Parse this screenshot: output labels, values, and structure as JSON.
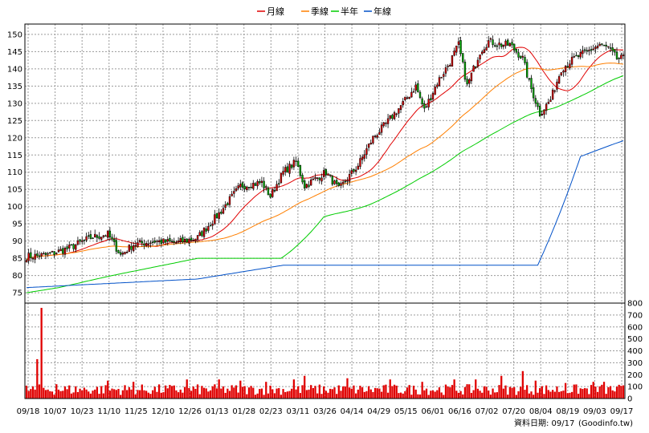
{
  "legend": [
    {
      "label": "月線",
      "color": "#e00000"
    },
    {
      "label": "季線",
      "color": "#ff7f00"
    },
    {
      "label": "半年",
      "color": "#00cc00"
    },
    {
      "label": "年線",
      "color": "#0050c8"
    }
  ],
  "footer": {
    "date_label": "資料日期: 09/17",
    "source": "(Goodinfo.tw)"
  },
  "chart_data": [
    {
      "type": "candlestick",
      "title": "",
      "xlabel": "",
      "ylabel": "",
      "ylim": [
        72,
        153
      ],
      "ytick_step": 5,
      "grid": true,
      "legend_position": "top-center",
      "up_color": "#e00000",
      "down_color": "#00b000",
      "x_ticks": [
        "09/18",
        "10/07",
        "10/23",
        "11/10",
        "11/25",
        "12/10",
        "12/26",
        "01/13",
        "01/28",
        "02/23",
        "03/11",
        "03/26",
        "04/14",
        "04/29",
        "05/15",
        "06/01",
        "06/16",
        "07/02",
        "07/20",
        "08/04",
        "08/19",
        "09/03",
        "09/17"
      ],
      "close_anchors": [
        [
          0,
          85.5
        ],
        [
          10,
          86
        ],
        [
          20,
          88
        ],
        [
          30,
          91
        ],
        [
          38,
          92
        ],
        [
          44,
          86
        ],
        [
          50,
          89
        ],
        [
          60,
          90
        ],
        [
          70,
          89.5
        ],
        [
          80,
          91
        ],
        [
          90,
          98
        ],
        [
          100,
          106
        ],
        [
          110,
          107
        ],
        [
          114,
          103
        ],
        [
          120,
          110
        ],
        [
          126,
          113
        ],
        [
          130,
          106
        ],
        [
          140,
          110
        ],
        [
          146,
          105
        ],
        [
          155,
          112
        ],
        [
          162,
          120
        ],
        [
          168,
          124
        ],
        [
          176,
          130
        ],
        [
          182,
          135
        ],
        [
          186,
          128
        ],
        [
          192,
          136
        ],
        [
          198,
          142
        ],
        [
          202,
          147
        ],
        [
          206,
          135
        ],
        [
          212,
          145
        ],
        [
          216,
          148
        ],
        [
          222,
          147
        ],
        [
          226,
          147
        ],
        [
          232,
          143
        ],
        [
          235,
          136
        ],
        [
          240,
          127
        ],
        [
          245,
          131
        ],
        [
          250,
          140
        ],
        [
          256,
          143
        ],
        [
          262,
          145
        ],
        [
          268,
          147
        ],
        [
          272,
          146
        ],
        [
          276,
          143
        ]
      ],
      "series": [
        {
          "name": "月線",
          "period": 20
        },
        {
          "name": "季線",
          "period": 60
        },
        {
          "name": "半年",
          "period": 120,
          "start_anchors": [
            [
              0,
              75
            ],
            [
              15,
              76.5
            ],
            [
              40,
              80
            ],
            [
              80,
              85
            ]
          ]
        },
        {
          "name": "年線",
          "period": 240,
          "start_anchors": [
            [
              0,
              76.5
            ],
            [
              80,
              79
            ],
            [
              120,
              83
            ]
          ]
        }
      ]
    },
    {
      "type": "bar",
      "title": "",
      "xlabel": "",
      "ylabel": "",
      "ylim": [
        0,
        800
      ],
      "yticks": [
        0,
        100,
        200,
        300,
        400,
        500,
        600,
        700,
        800
      ],
      "color": "#e00000",
      "spikes": [
        [
          5,
          330
        ],
        [
          7,
          760
        ],
        [
          14,
          120
        ],
        [
          38,
          150
        ],
        [
          50,
          140
        ],
        [
          75,
          160
        ],
        [
          90,
          160
        ],
        [
          100,
          150
        ],
        [
          112,
          140
        ],
        [
          125,
          160
        ],
        [
          130,
          190
        ],
        [
          150,
          170
        ],
        [
          170,
          160
        ],
        [
          185,
          140
        ],
        [
          200,
          160
        ],
        [
          210,
          160
        ],
        [
          222,
          190
        ],
        [
          232,
          230
        ],
        [
          238,
          150
        ],
        [
          252,
          130
        ],
        [
          265,
          140
        ],
        [
          270,
          140
        ]
      ],
      "baseline_range": [
        30,
        120
      ]
    }
  ]
}
